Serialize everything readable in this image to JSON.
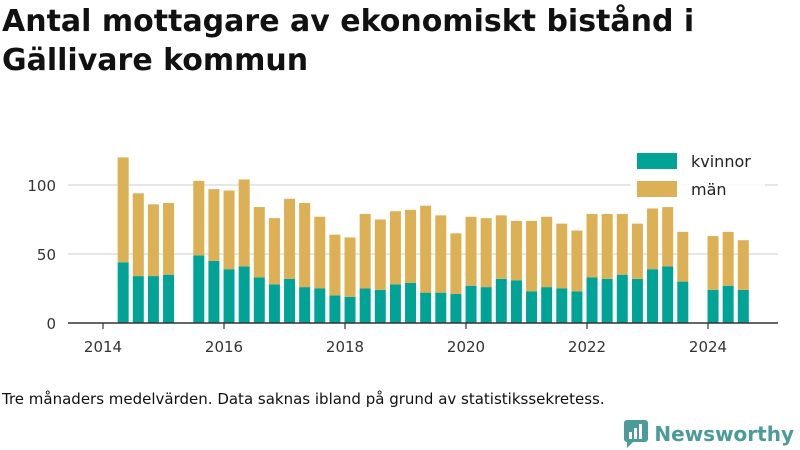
{
  "title": "Antal mottagare av ekonomiskt bistånd i Gällivare kommun",
  "note": "Tre månaders medelvärden. Data saknas ibland på grund av statistikssekretess.",
  "brand": "Newsworthy",
  "colors": {
    "kvinnor": "#00a396",
    "man": "#dcb055",
    "grid": "#dddddd",
    "axis": "#333333",
    "brand": "#4a9b9a"
  },
  "chart_data": {
    "type": "bar",
    "stacked": true,
    "x_ticks": [
      "2014",
      "2016",
      "2018",
      "2020",
      "2022",
      "2024"
    ],
    "y_ticks": [
      "0",
      "50",
      "100"
    ],
    "ylim": [
      0,
      130
    ],
    "legend": "top-right",
    "grid": true,
    "x": [
      "2014-05",
      "2014-08",
      "2014-11",
      "2015-02",
      "2015-08",
      "2015-11",
      "2016-02",
      "2016-05",
      "2016-08",
      "2016-11",
      "2017-02",
      "2017-05",
      "2017-08",
      "2017-11",
      "2018-02",
      "2018-05",
      "2018-08",
      "2018-11",
      "2019-02",
      "2019-05",
      "2019-08",
      "2019-11",
      "2020-02",
      "2020-05",
      "2020-08",
      "2020-11",
      "2021-02",
      "2021-05",
      "2021-08",
      "2021-11",
      "2022-02",
      "2022-05",
      "2022-08",
      "2022-11",
      "2023-02",
      "2023-05",
      "2023-08",
      "2024-02",
      "2024-05",
      "2024-08"
    ],
    "series": [
      {
        "name": "kvinnor",
        "values": [
          44,
          34,
          34,
          35,
          49,
          45,
          39,
          41,
          33,
          28,
          32,
          26,
          25,
          20,
          19,
          25,
          24,
          28,
          29,
          22,
          22,
          21,
          27,
          26,
          32,
          31,
          23,
          26,
          25,
          23,
          33,
          32,
          35,
          32,
          39,
          41,
          30,
          24,
          27,
          24
        ]
      },
      {
        "name": "män",
        "values": [
          76,
          60,
          52,
          52,
          54,
          52,
          57,
          63,
          51,
          48,
          58,
          61,
          52,
          44,
          43,
          54,
          51,
          53,
          53,
          63,
          56,
          44,
          50,
          50,
          46,
          43,
          51,
          51,
          47,
          44,
          46,
          47,
          44,
          40,
          44,
          43,
          36,
          39,
          39,
          36
        ]
      }
    ]
  }
}
